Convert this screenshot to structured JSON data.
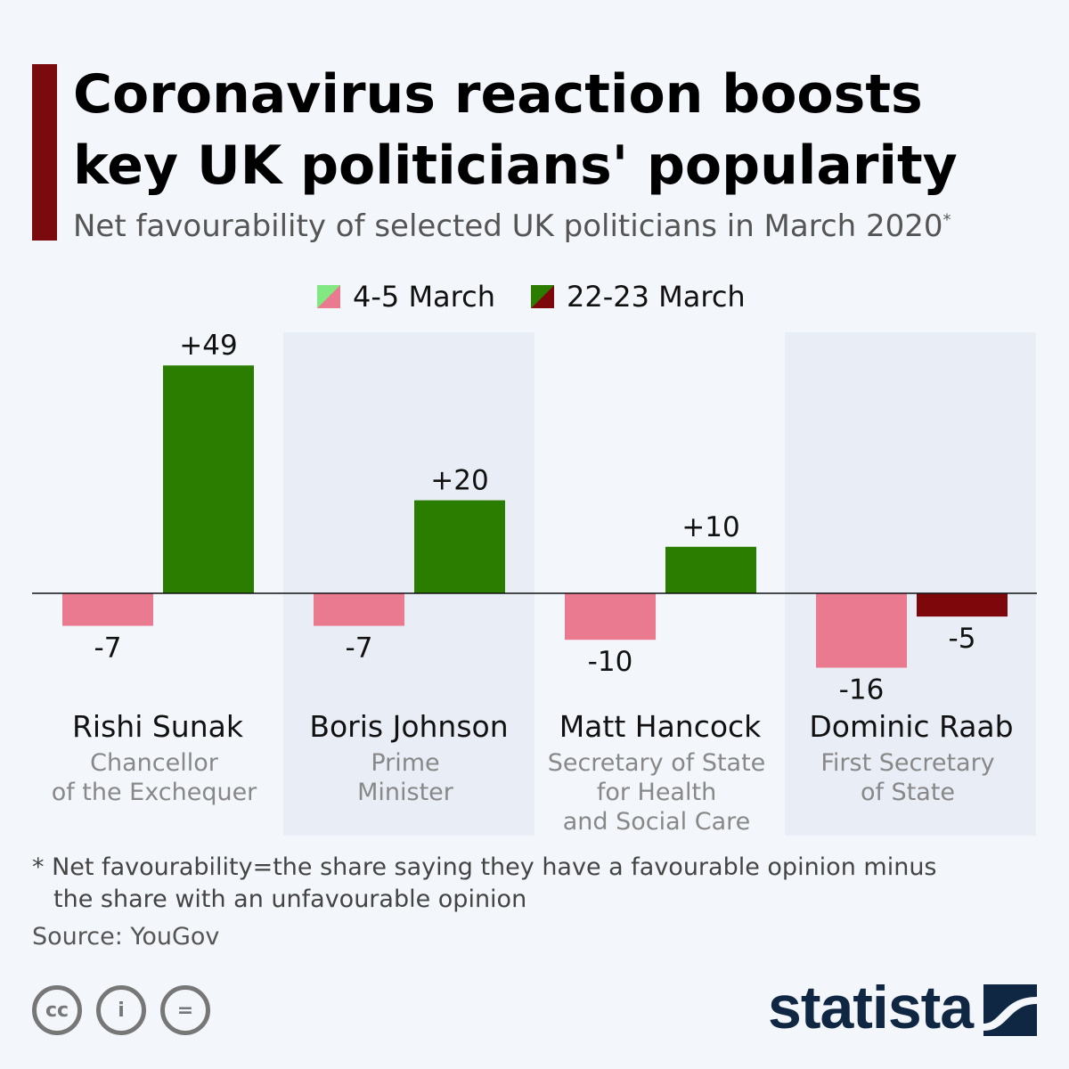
{
  "title_line1": "Coronavirus reaction boosts",
  "title_line2": "key UK politicians' popularity",
  "subtitle": "Net favourability of selected UK politicians in March 2020",
  "subtitle_mark": "*",
  "colors": {
    "early_neg": "#e97a90",
    "early_pos": "#82e882",
    "late_pos": "#2b7d00",
    "late_neg": "#7d070b",
    "panel": "#e9edf5"
  },
  "chart_data": {
    "type": "bar",
    "title": "Net favourability of selected UK politicians in March 2020",
    "categories": [
      "Rishi Sunak",
      "Boris Johnson",
      "Matt Hancock",
      "Dominic Raab"
    ],
    "series": [
      {
        "name": "4-5 March",
        "values": [
          -7,
          -7,
          -10,
          -16
        ]
      },
      {
        "name": "22-23 March",
        "values": [
          49,
          20,
          10,
          -5
        ]
      }
    ],
    "labels": [
      [
        "-7",
        "+49"
      ],
      [
        "-7",
        "+20"
      ],
      [
        "-10",
        "+10"
      ],
      [
        "-16",
        "-5"
      ]
    ],
    "legend": "top",
    "grid": false
  },
  "politicians": [
    {
      "name": "Rishi Sunak",
      "role": [
        "Chancellor",
        "of the Exchequer"
      ]
    },
    {
      "name": "Boris Johnson",
      "role": [
        "Prime",
        "Minister"
      ]
    },
    {
      "name": "Matt Hancock",
      "role": [
        "Secretary of State",
        "for Health",
        "and Social Care"
      ]
    },
    {
      "name": "Dominic Raab",
      "role": [
        "First Secretary",
        "of State"
      ]
    }
  ],
  "footnote_line1": "* Net favourability=the share saying they have a favourable opinion minus",
  "footnote_line2": "the share with an unfavourable opinion",
  "source": "Source: YouGov",
  "license": {
    "cc": "cc",
    "by": "i",
    "nd": "="
  },
  "logo": "statista"
}
